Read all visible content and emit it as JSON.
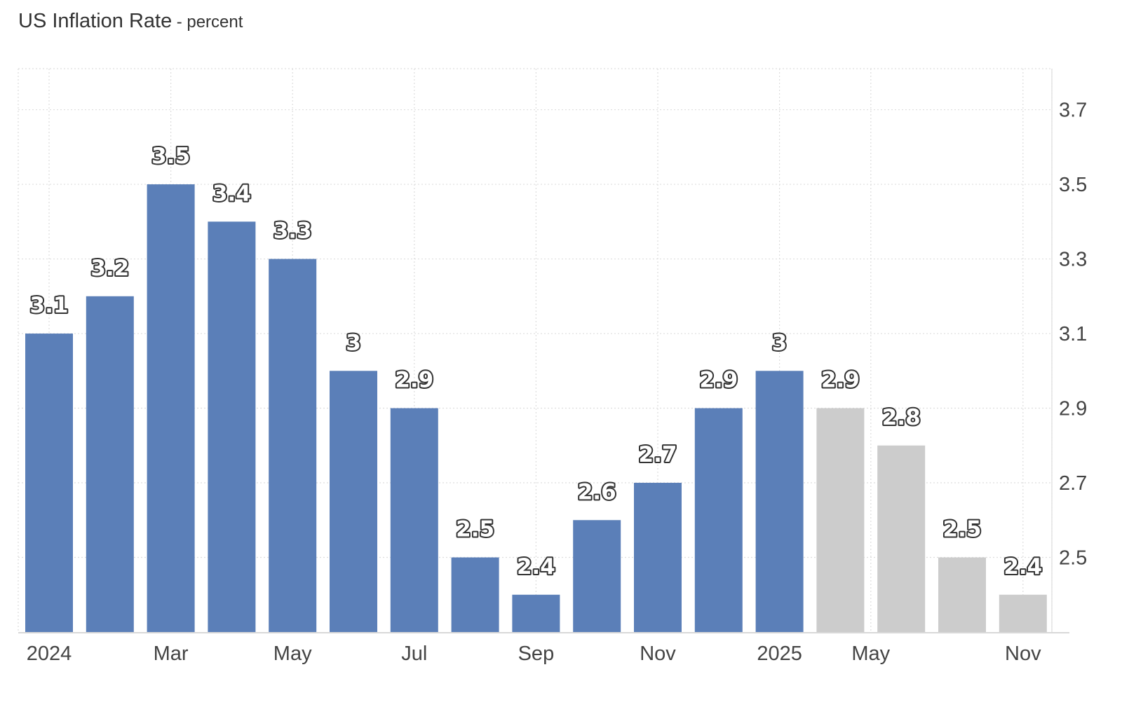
{
  "header": {
    "title": "US Inflation Rate",
    "subtitle": "- percent"
  },
  "chart_data": {
    "type": "bar",
    "title": "US Inflation Rate",
    "subtitle": "- percent",
    "xlabel": "",
    "ylabel": "",
    "categories": [
      "2024-01",
      "2024-02",
      "2024-03",
      "2024-04",
      "2024-05",
      "2024-06",
      "2024-07",
      "2024-08",
      "2024-09",
      "2024-10",
      "2024-11",
      "2024-12",
      "2025-01",
      "2025-04",
      "2025-05",
      "2025-09",
      "2025-11"
    ],
    "values": [
      3.1,
      3.2,
      3.5,
      3.4,
      3.3,
      3.0,
      2.9,
      2.5,
      2.4,
      2.6,
      2.7,
      2.9,
      3.0,
      2.9,
      2.8,
      2.5,
      2.4
    ],
    "data_labels": [
      "3.1",
      "3.2",
      "3.5",
      "3.4",
      "3.3",
      "3",
      "2.9",
      "2.5",
      "2.4",
      "2.6",
      "2.7",
      "2.9",
      "3",
      "2.9",
      "2.8",
      "2.5",
      "2.4"
    ],
    "bar_status": [
      "actual",
      "actual",
      "actual",
      "actual",
      "actual",
      "actual",
      "actual",
      "actual",
      "actual",
      "actual",
      "actual",
      "actual",
      "actual",
      "forecast",
      "forecast",
      "forecast",
      "forecast"
    ],
    "x_tick_labels": [
      {
        "label": "2024",
        "bar": 0
      },
      {
        "label": "Mar",
        "bar": 2
      },
      {
        "label": "May",
        "bar": 4
      },
      {
        "label": "Jul",
        "bar": 6
      },
      {
        "label": "Sep",
        "bar": 8
      },
      {
        "label": "Nov",
        "bar": 10
      },
      {
        "label": "2025",
        "bar": 12
      },
      {
        "label": "May",
        "bar": 13.5
      },
      {
        "label": "Nov",
        "bar": 16
      }
    ],
    "y_ticks": [
      2.5,
      2.7,
      2.9,
      3.1,
      3.3,
      3.5,
      3.7
    ],
    "ylim": [
      2.3,
      3.81
    ],
    "y_axis_position": "right",
    "grid": true,
    "legend": "none",
    "colors": {
      "actual": "#5b7fb8",
      "forecast": "#cccccc",
      "grid": "#dddddd"
    }
  }
}
